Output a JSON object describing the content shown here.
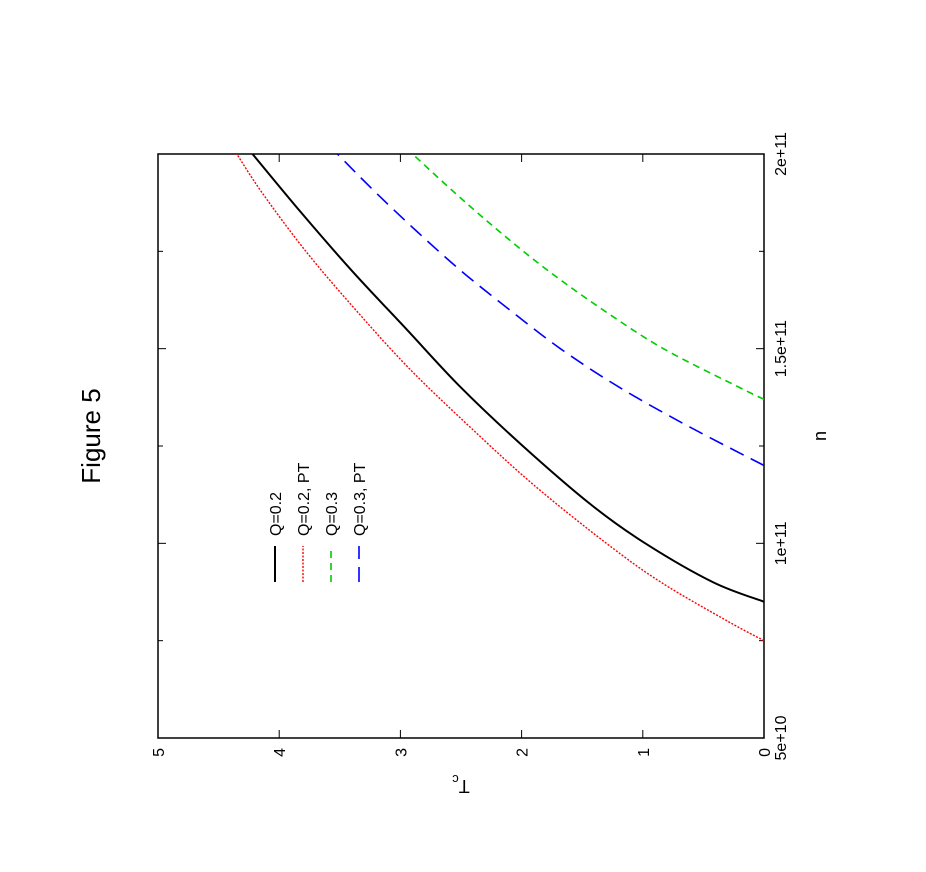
{
  "chart_data": {
    "type": "line",
    "title": "Figure 5",
    "xlabel": "n",
    "ylabel": "T",
    "ylabel_sub": "c",
    "xlim": [
      50000000000.0,
      200000000000.0
    ],
    "ylim": [
      0,
      5
    ],
    "x_ticks": [
      {
        "value": 50000000000.0,
        "label": "5e+10"
      },
      {
        "value": 100000000000.0,
        "label": "1e+11"
      },
      {
        "value": 150000000000.0,
        "label": "1.5e+11"
      },
      {
        "value": 200000000000.0,
        "label": "2e+11"
      }
    ],
    "x_minor_ticks": [
      75000000000.0,
      125000000000.0,
      175000000000.0
    ],
    "y_ticks": [
      {
        "value": 0,
        "label": "0"
      },
      {
        "value": 1,
        "label": "1"
      },
      {
        "value": 2,
        "label": "2"
      },
      {
        "value": 3,
        "label": "3"
      },
      {
        "value": 4,
        "label": "4"
      },
      {
        "value": 5,
        "label": "5"
      }
    ],
    "grid": false,
    "legend_position": "top-left",
    "series": [
      {
        "name": "Q=0.2",
        "color": "#000000",
        "dash": "solid",
        "x": [
          85000000000.0,
          90000000000.0,
          100000000000.0,
          110000000000.0,
          125000000000.0,
          140000000000.0,
          155000000000.0,
          170000000000.0,
          185000000000.0,
          200000000000.0
        ],
        "y": [
          0,
          0.42,
          0.98,
          1.43,
          1.99,
          2.5,
          2.95,
          3.4,
          3.82,
          4.22
        ]
      },
      {
        "name": "Q=0.2, PT",
        "color": "#ff0000",
        "dash": "dotted",
        "x": [
          75000000000.0,
          80000000000.0,
          90000000000.0,
          100000000000.0,
          115000000000.0,
          130000000000.0,
          145000000000.0,
          160000000000.0,
          175000000000.0,
          190000000000.0,
          200000000000.0
        ],
        "y": [
          0,
          0.3,
          0.85,
          1.3,
          1.9,
          2.43,
          2.93,
          3.37,
          3.78,
          4.14,
          4.35
        ]
      },
      {
        "name": "Q=0.3",
        "color": "#00cc00",
        "dash": "dashed",
        "x": [
          137000000000.0,
          140000000000.0,
          150000000000.0,
          160000000000.0,
          170000000000.0,
          180000000000.0,
          190000000000.0,
          200000000000.0
        ],
        "y": [
          0,
          0.2,
          0.83,
          1.33,
          1.78,
          2.18,
          2.55,
          2.9
        ]
      },
      {
        "name": "Q=0.3, PT",
        "color": "#0000ff",
        "dash": "longdash",
        "x": [
          120000000000.0,
          130000000000.0,
          140000000000.0,
          150000000000.0,
          160000000000.0,
          170000000000.0,
          180000000000.0,
          190000000000.0,
          200000000000.0
        ],
        "y": [
          0,
          0.62,
          1.19,
          1.68,
          2.1,
          2.5,
          2.86,
          3.2,
          3.52
        ]
      }
    ]
  }
}
